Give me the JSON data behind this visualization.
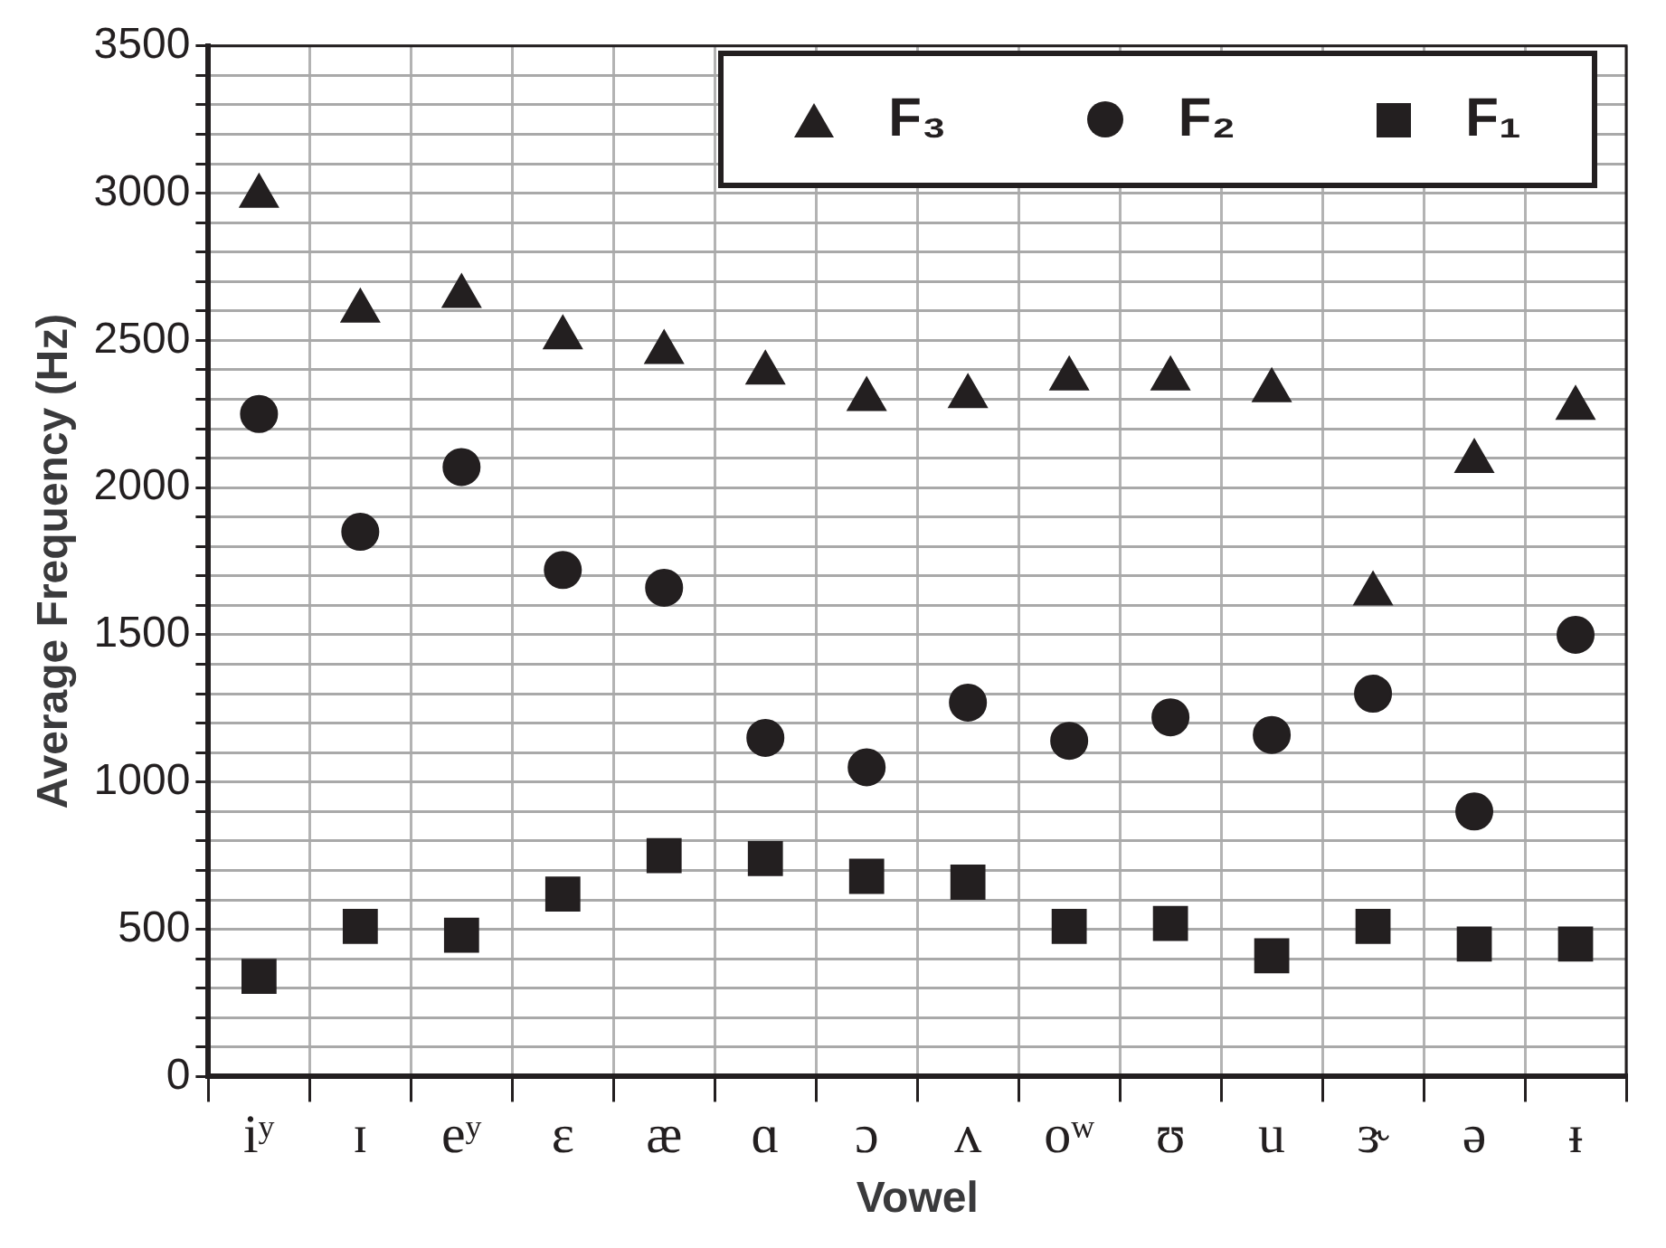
{
  "chart_data": {
    "type": "scatter",
    "xlabel": "Vowel",
    "ylabel": "Average Frequency (Hz)",
    "categories": [
      "iʸ",
      "ɪ",
      "eʸ",
      "ɛ",
      "æ",
      "ɑ",
      "ɔ",
      "ʌ",
      "oʷ",
      "ʊ",
      "u",
      "ɝ",
      "ə",
      "ᵻ"
    ],
    "series": [
      {
        "name": "F₃",
        "color": "#231f20",
        "marker": "triangle",
        "values": [
          2990,
          2600,
          2650,
          2510,
          2460,
          2390,
          2300,
          2310,
          2370,
          2370,
          2330,
          1640,
          2090,
          2270
        ]
      },
      {
        "name": "F₂",
        "color": "#231f20",
        "marker": "circle",
        "values": [
          2250,
          1850,
          2070,
          1720,
          1660,
          1150,
          1050,
          1270,
          1140,
          1220,
          1160,
          1300,
          900,
          1500
        ]
      },
      {
        "name": "F₁",
        "color": "#231f20",
        "marker": "square",
        "values": [
          340,
          510,
          480,
          620,
          750,
          740,
          680,
          660,
          510,
          520,
          410,
          510,
          450,
          450
        ]
      }
    ],
    "ylim": [
      0,
      3500
    ],
    "yticks": [
      0,
      {
        "value": 100,
        "label": null
      },
      {
        "value": 200,
        "label": null
      },
      {
        "value": 300,
        "label": null
      },
      {
        "value": 400,
        "label": null
      },
      500,
      {
        "value": 600,
        "label": null
      },
      {
        "value": 700,
        "label": null
      },
      {
        "value": 800,
        "label": null
      },
      {
        "value": 900,
        "label": null
      },
      1000,
      {
        "value": 1100,
        "label": null
      },
      {
        "value": 1200,
        "label": null
      },
      {
        "value": 1300,
        "label": null
      },
      {
        "value": 1400,
        "label": null
      },
      1500,
      {
        "value": 1600,
        "label": null
      },
      {
        "value": 1700,
        "label": null
      },
      {
        "value": 1800,
        "label": null
      },
      {
        "value": 1900,
        "label": null
      },
      2000,
      {
        "value": 2100,
        "label": null
      },
      {
        "value": 2200,
        "label": null
      },
      {
        "value": 2300,
        "label": null
      },
      {
        "value": 2400,
        "label": null
      },
      2500,
      {
        "value": 2600,
        "label": null
      },
      {
        "value": 2700,
        "label": null
      },
      {
        "value": 2800,
        "label": null
      },
      {
        "value": 2900,
        "label": null
      },
      3000,
      {
        "value": 3100,
        "label": null
      },
      {
        "value": 3200,
        "label": null
      },
      {
        "value": 3300,
        "label": null
      },
      {
        "value": 3400,
        "label": null
      },
      3500
    ],
    "grid": true,
    "legend": "top right"
  }
}
